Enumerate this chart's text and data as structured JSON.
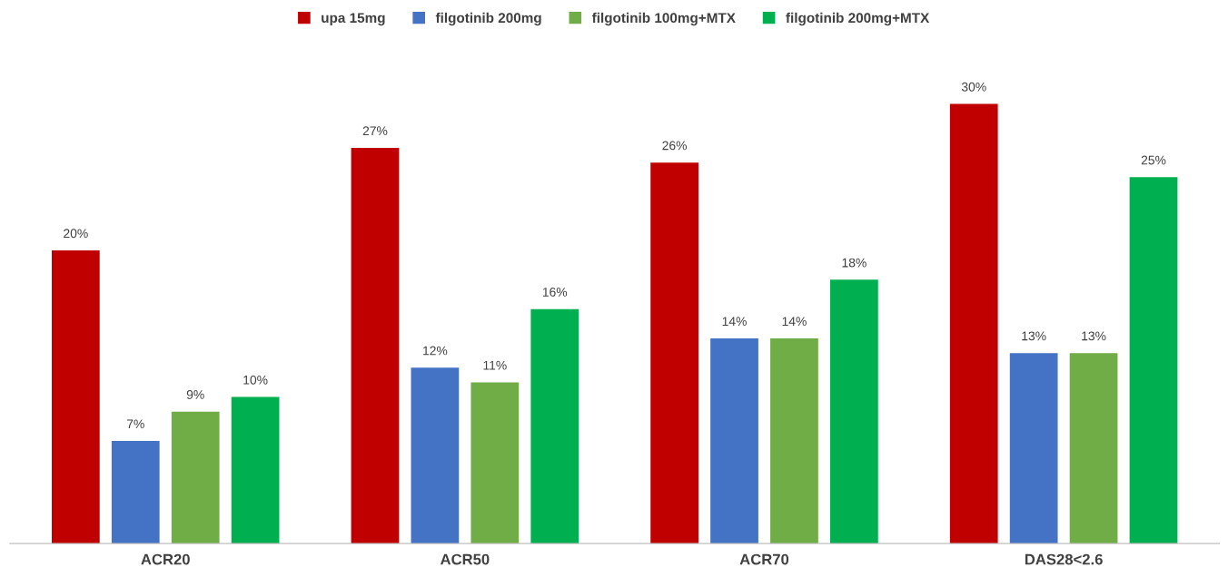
{
  "chart_data": {
    "type": "bar",
    "categories": [
      "ACR20",
      "ACR50",
      "ACR70",
      "DAS28<2.6"
    ],
    "series": [
      {
        "name": "upa 15mg",
        "color": "#c00000",
        "values": [
          20,
          27,
          26,
          30
        ],
        "value_labels": [
          "20%",
          "27%",
          "26%",
          "30%"
        ]
      },
      {
        "name": "filgotinib 200mg",
        "color": "#4472c4",
        "values": [
          7,
          12,
          14,
          13
        ],
        "value_labels": [
          "7%",
          "12%",
          "14%",
          "13%"
        ]
      },
      {
        "name": "filgotinib 100mg+MTX",
        "color": "#70ad47",
        "values": [
          9,
          11,
          14,
          13
        ],
        "value_labels": [
          "9%",
          "11%",
          "14%",
          "13%"
        ]
      },
      {
        "name": "filgotinib 200mg+MTX",
        "color": "#00b050",
        "values": [
          10,
          16,
          18,
          25
        ],
        "value_labels": [
          "10%",
          "16%",
          "18%",
          "25%"
        ]
      }
    ],
    "legend": "top",
    "grid": false
  }
}
